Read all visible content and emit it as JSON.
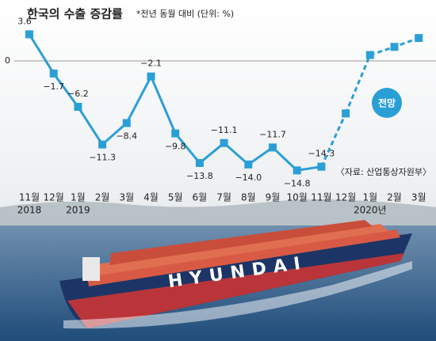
{
  "chart_data": {
    "type": "line",
    "title": "한국의 수출 증감률",
    "subtitle": "*전년 동월 대비 (단위: %)",
    "source": "〈자료: 산업통상자원부〉",
    "photo_text": "HYUNDAI",
    "categories": [
      "11월",
      "12월",
      "1월",
      "2월",
      "3월",
      "4월",
      "5월",
      "6월",
      "7월",
      "8월",
      "9월",
      "10월",
      "11월",
      "12월",
      "1월",
      "2월",
      "3월"
    ],
    "year_labels": [
      "2018",
      null,
      "2019",
      null,
      null,
      null,
      null,
      null,
      null,
      null,
      null,
      null,
      null,
      null,
      "2020년",
      null,
      null
    ],
    "series": [
      {
        "color": "#2a9fd6",
        "values": [
          3.6,
          -1.7,
          -6.2,
          -11.3,
          -8.4,
          -2.1,
          -9.8,
          -13.8,
          -11.1,
          -14.0,
          -11.7,
          -14.8,
          -14.3,
          null,
          null,
          null,
          null
        ],
        "value_labels": [
          "3.6",
          "−1.7",
          "−6.2",
          "−11.3",
          "−8.4",
          "−2.1",
          "−9.8",
          "−13.8",
          "−11.1",
          "−14.0",
          "−11.7",
          "−14.8",
          "−14.3",
          null,
          null,
          null,
          null
        ]
      },
      {
        "name": "전망",
        "color": "#2a9fd6",
        "dashed": true,
        "values": [
          null,
          null,
          null,
          null,
          null,
          null,
          null,
          null,
          null,
          null,
          null,
          null,
          null,
          -7.1,
          0.8,
          1.9,
          3.1
        ]
      }
    ],
    "ylim": [
      -16.9,
      6.1
    ],
    "yticks": [
      0
    ]
  }
}
